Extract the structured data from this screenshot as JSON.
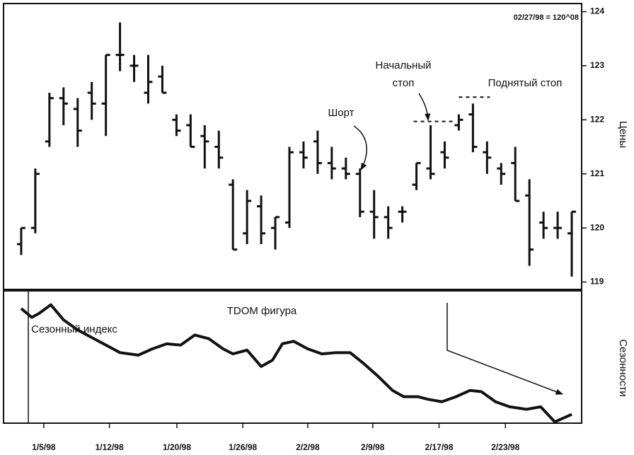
{
  "chart_data": [
    {
      "type": "ohlc",
      "annotation": "02/27/98 = 120^08",
      "ylabel": "Цены",
      "label_short": "Шорт",
      "label_initial_stop": [
        "Начальный",
        "стоп"
      ],
      "label_raised_stop": "Поднятый стоп",
      "initial_stop": 121.97,
      "raised_stop": 122.42,
      "color": "#111111",
      "xlim": [
        -1.25,
        39.7
      ],
      "ylim": [
        118.85,
        124.15
      ],
      "yticks": [
        119,
        120,
        121,
        122,
        123,
        124
      ],
      "open": [
        119.7,
        120.0,
        121.6,
        122.4,
        122.2,
        122.5,
        122.3,
        123.2,
        123.0,
        122.5,
        122.8,
        122.0,
        121.9,
        121.7,
        121.5,
        120.8,
        119.9,
        120.4,
        120.0,
        120.1,
        121.4,
        121.6,
        121.2,
        121.1,
        121.0,
        120.3,
        120.2,
        120.3,
        120.8,
        121.1,
        121.4,
        121.9,
        122.1,
        121.4,
        121.1,
        121.2,
        120.6,
        120.1,
        120.0,
        119.9
      ],
      "high": [
        120.0,
        121.1,
        122.5,
        122.6,
        122.4,
        122.7,
        123.2,
        123.8,
        123.2,
        123.2,
        123.0,
        122.1,
        122.1,
        121.9,
        121.8,
        120.9,
        120.7,
        120.6,
        120.2,
        121.5,
        121.6,
        121.8,
        121.5,
        121.3,
        121.1,
        120.7,
        120.4,
        120.4,
        121.2,
        121.9,
        121.6,
        122.1,
        122.3,
        121.6,
        121.2,
        121.5,
        120.9,
        120.3,
        120.3,
        120.3
      ],
      "low": [
        119.5,
        119.9,
        121.5,
        121.9,
        121.5,
        122.0,
        121.7,
        122.9,
        122.7,
        122.3,
        122.5,
        121.7,
        121.5,
        121.1,
        121.1,
        119.6,
        119.7,
        119.7,
        119.6,
        120.0,
        121.1,
        121.0,
        120.9,
        120.9,
        120.2,
        119.8,
        119.8,
        120.1,
        120.7,
        120.9,
        121.1,
        121.8,
        121.4,
        121.0,
        120.8,
        120.5,
        119.3,
        119.8,
        119.8,
        119.1
      ],
      "close": [
        120.0,
        121.0,
        122.4,
        122.3,
        121.8,
        122.3,
        123.2,
        123.2,
        123.0,
        122.7,
        122.5,
        121.8,
        121.5,
        121.6,
        121.3,
        119.6,
        120.5,
        119.9,
        120.2,
        121.4,
        121.3,
        121.2,
        121.1,
        121.0,
        120.3,
        120.2,
        120.0,
        120.3,
        121.2,
        121.0,
        121.3,
        122.0,
        121.5,
        121.3,
        121.0,
        120.5,
        119.6,
        120.0,
        120.0,
        120.3
      ]
    },
    {
      "type": "line",
      "ylabel": "Сезонности",
      "label_pattern": "TDOM фигура",
      "label_index": "Сезонный индекс",
      "color": "#111111",
      "xlim": [
        -1.25,
        39.7
      ],
      "ylim": [
        0,
        100
      ],
      "xticks": [
        {
          "value": 1.6,
          "label": "1/5/98"
        },
        {
          "value": 6.25,
          "label": "1/12/98"
        },
        {
          "value": 11.03,
          "label": "1/20/98"
        },
        {
          "value": 15.7,
          "label": "1/26/98"
        },
        {
          "value": 20.3,
          "label": "2/2/98"
        },
        {
          "value": 24.9,
          "label": "2/9/98"
        },
        {
          "value": 29.6,
          "label": "2/17/98"
        },
        {
          "value": 34.3,
          "label": "2/23/98"
        }
      ],
      "x": [
        0,
        0.75,
        1.25,
        2.1,
        3,
        4,
        5,
        6,
        7,
        8.3,
        9.3,
        10.3,
        11.3,
        12.3,
        13.3,
        14.3,
        15,
        16,
        17,
        17.8,
        18.5,
        19.3,
        20.3,
        21.3,
        22.3,
        23.3,
        24.3,
        25.3,
        26.3,
        27.1,
        28.1,
        28.8,
        29.8,
        30.8,
        31.8,
        32.6,
        33.6,
        34.6,
        35.8,
        36.8,
        37.8,
        39
      ],
      "values": [
        91,
        84,
        87,
        94,
        82,
        74,
        68,
        62,
        56,
        54,
        59,
        63,
        62,
        70,
        67,
        59,
        55,
        58,
        45,
        50,
        63,
        65,
        59,
        55,
        56,
        56,
        47,
        37,
        26,
        21,
        21,
        19,
        17,
        21,
        26,
        25,
        17,
        13,
        11,
        13,
        1,
        7
      ]
    }
  ]
}
